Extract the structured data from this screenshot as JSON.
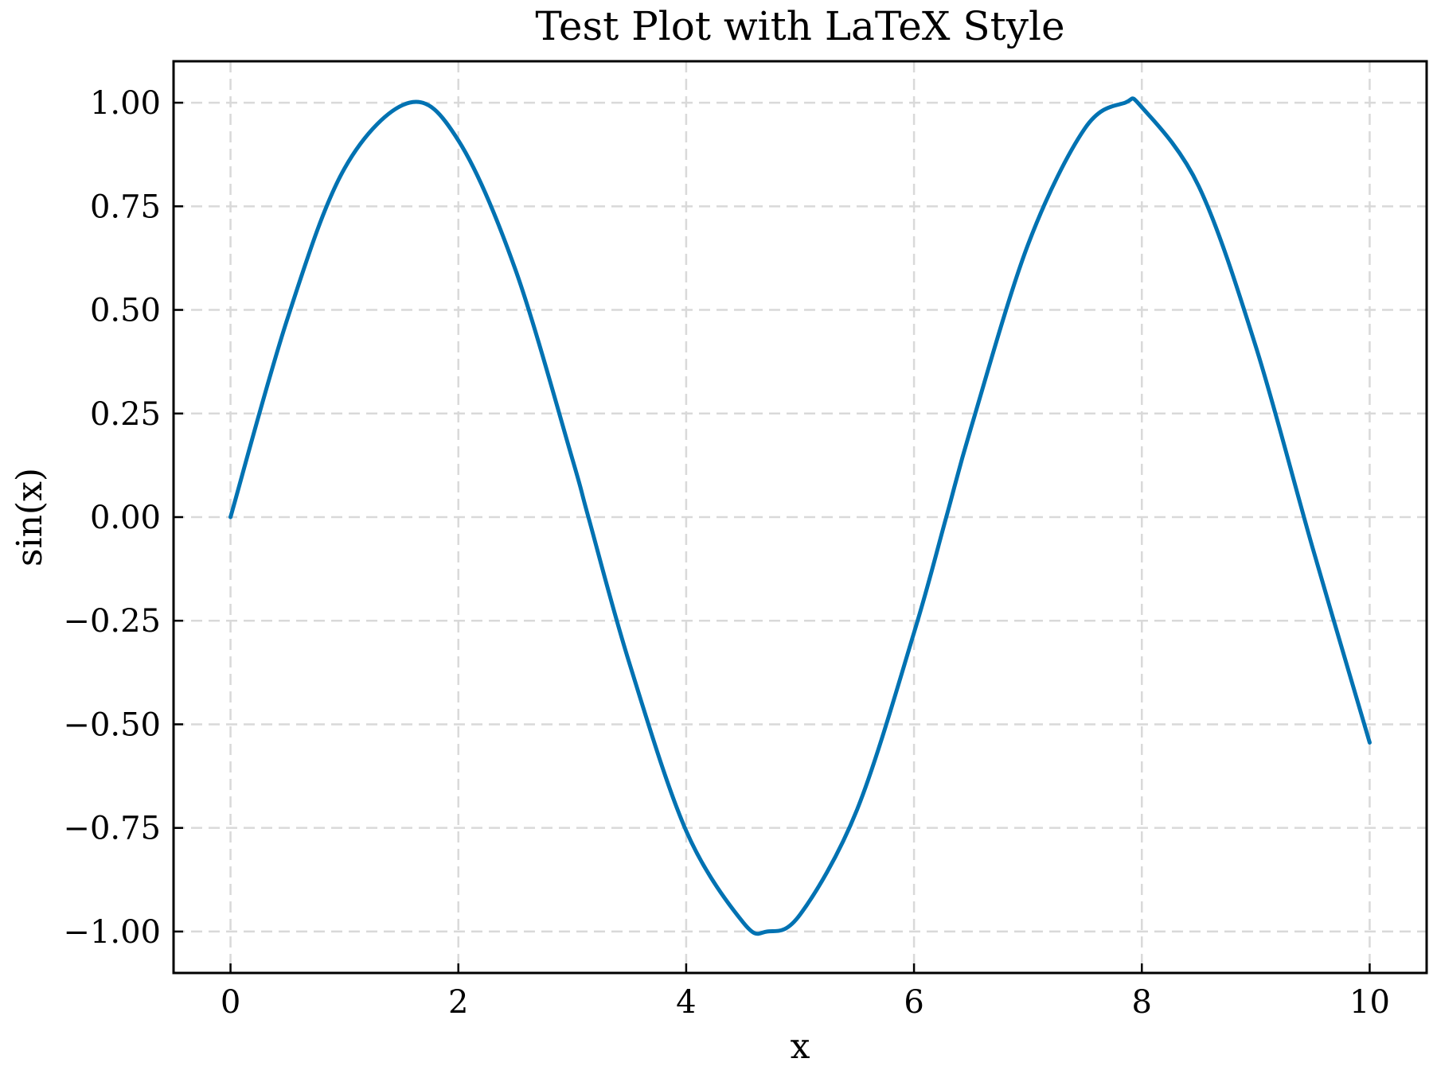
{
  "chart_data": {
    "type": "line",
    "title": "Test Plot with LaTeX Style",
    "xlabel": "x",
    "ylabel": "sin(x)",
    "xlim": [
      -0.5,
      10.5
    ],
    "ylim": [
      -1.1,
      1.1
    ],
    "grid": true,
    "x_ticks": [
      0,
      2,
      4,
      6,
      8,
      10
    ],
    "x_tick_labels": [
      "0",
      "2",
      "4",
      "6",
      "8",
      "10"
    ],
    "y_ticks": [
      1.0,
      0.75,
      0.5,
      0.25,
      0.0,
      -0.25,
      -0.5,
      -0.75,
      -1.0
    ],
    "y_tick_labels": [
      "1.00",
      "0.75",
      "0.50",
      "0.25",
      "0.00",
      "−0.25",
      "−0.50",
      "−0.75",
      "−1.00"
    ],
    "series": [
      {
        "color": "#0072b2",
        "x": [
          0.0,
          0.5,
          1.0,
          1.5708,
          2.0,
          2.5,
          3.0,
          3.1416,
          3.5,
          4.0,
          4.5,
          4.7124,
          5.0,
          5.5,
          6.0,
          6.2832,
          6.5,
          7.0,
          7.5,
          7.854,
          8.0,
          8.5,
          9.0,
          9.5,
          10.0
        ],
        "y": [
          0.0,
          0.479,
          0.841,
          1.0,
          0.909,
          0.598,
          0.141,
          0.0,
          -0.351,
          -0.757,
          -0.978,
          -1.0,
          -0.959,
          -0.706,
          -0.279,
          0.0,
          0.215,
          0.657,
          0.938,
          1.0,
          0.989,
          0.798,
          0.412,
          -0.075,
          -0.544
        ]
      }
    ]
  }
}
